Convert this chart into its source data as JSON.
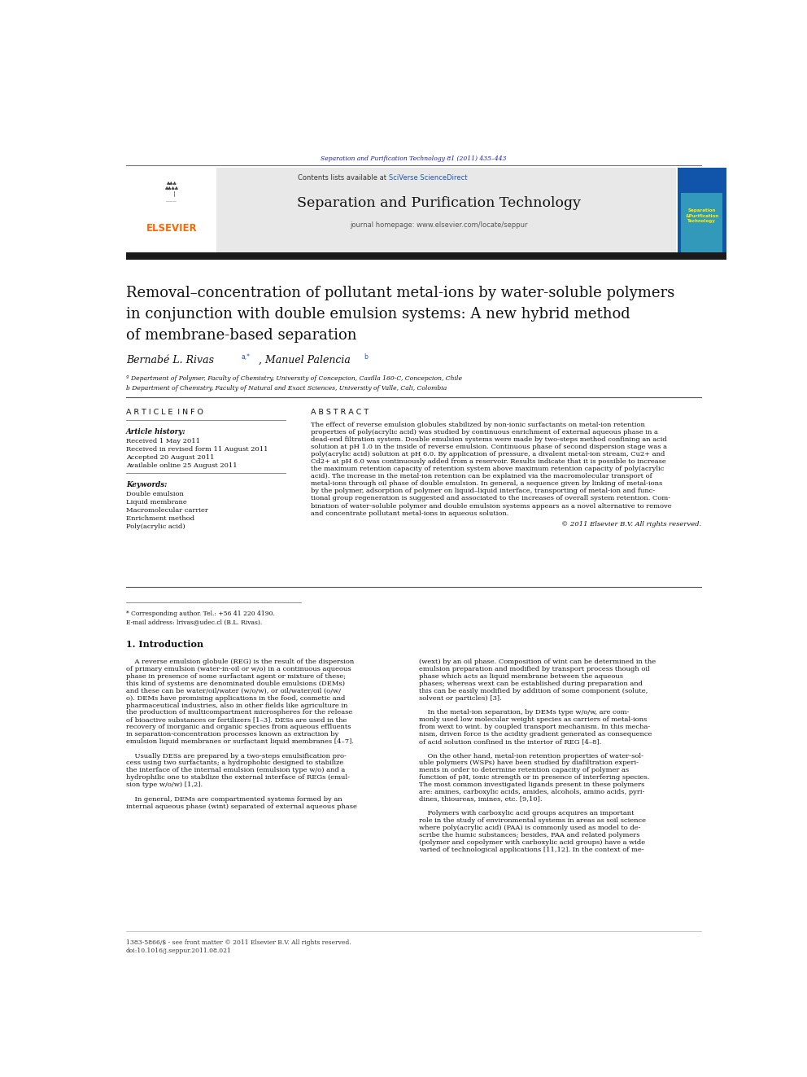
{
  "page_width": 9.92,
  "page_height": 13.23,
  "bg_color": "#ffffff",
  "journal_ref": "Separation and Purification Technology 81 (2011) 435–443",
  "journal_ref_color": "#1a1aaa",
  "contents_text": "Contents lists available at ",
  "sciverse_text": "SciVerse ScienceDirect",
  "sciverse_color": "#2255aa",
  "journal_name": "Separation and Purification Technology",
  "journal_homepage": "journal homepage: www.elsevier.com/locate/seppur",
  "header_bg": "#e8e8e8",
  "dark_bar_color": "#1a1a1a",
  "elsevier_color": "#ff6600",
  "article_title": "Removal–concentration of pollutant metal-ions by water-soluble polymers\nin conjunction with double emulsion systems: A new hybrid method\nof membrane-based separation",
  "authors": "Bernabé L. Rivas",
  "authors_super": "a,*",
  "authors2": ", Manuel Palencia",
  "authors2_super": "b",
  "affil1": "ª Department of Polymer, Faculty of Chemistry, University of Concepcion, Casilla 160-C, Concepcion, Chile",
  "affil2": "b Department of Chemistry, Faculty of Natural and Exact Sciences, University of Valle, Cali, Colombia",
  "article_info_header": "A R T I C L E  I N F O",
  "abstract_header": "A B S T R A C T",
  "article_history_label": "Article history:",
  "received1": "Received 1 May 2011",
  "received2": "Received in revised form 11 August 2011",
  "accepted": "Accepted 20 August 2011",
  "available": "Available online 25 August 2011",
  "keywords_label": "Keywords:",
  "keywords": [
    "Double emulsion",
    "Liquid membrane",
    "Macromolecular carrier",
    "Enrichment method",
    "Poly(acrylic acid)"
  ],
  "abstract_text": "The effect of reverse emulsion globules stabilized by non-ionic surfactants on metal-ion retention properties of poly(acrylic acid) was studied by continuous enrichment of external aqueous phase in a dead-end filtration system. Double emulsion systems were made by two-steps method confining an acid solution at pH 1.0 in the inside of reverse emulsion. Continuous phase of second dispersion stage was a poly(acrylic acid) solution at pH 6.0. By application of pressure, a divalent metal-ion stream, Cu2+ and Cd2+ at pH 6.0 was continuously added from a reservoir. Results indicate that it is possible to increase the maximum retention capacity of retention system above maximum retention capacity of poly(acrylic acid). The increase in the metal-ion retention can be explained via the macromolecular transport of metal-ions through oil phase of double emulsion. In general, a sequence given by linking of metal-ions by the polymer, adsorption of polymer on liquid–liquid interface, transporting of metal-ion and functional group regeneration is suggested and associated to the increases of overall system retention. Combination of water-soluble polymer and double emulsion systems appears as a novel alternative to remove and concentrate pollutant metal-ions in aqueous solution.",
  "copyright": "© 2011 Elsevier B.V. All rights reserved.",
  "section1_title": "1. Introduction",
  "footnote1": "* Corresponding author. Tel.: +56 41 220 4190.",
  "footnote2": "E-mail address: lrivas@udec.cl (B.L. Rivas).",
  "footer1": "1383-5866/$ - see front matter © 2011 Elsevier B.V. All rights reserved.",
  "footer2": "doi:10.1016/j.seppur.2011.08.021",
  "intro1_lines": [
    "    A reverse emulsion globule (REG) is the result of the dispersion",
    "of primary emulsion (water-in-oil or w/o) in a continuous aqueous",
    "phase in presence of some surfactant agent or mixture of these;",
    "this kind of systems are denominated double emulsions (DEMs)",
    "and these can be water/oil/water (w/o/w), or oil/water/oil (o/w/",
    "o). DEMs have promising applications in the food, cosmetic and",
    "pharmaceutical industries, also in other fields like agriculture in",
    "the production of multicompartment microspheres for the release",
    "of bioactive substances or fertilizers [1–3]. DESs are used in the",
    "recovery of inorganic and organic species from aqueous effluents",
    "in separation-concentration processes known as extraction by",
    "emulsion liquid membranes or surfactant liquid membranes [4–7].",
    "",
    "    Usually DESs are prepared by a two-steps emulsification pro-",
    "cess using two surfactants; a hydrophobic designed to stabilize",
    "the interface of the internal emulsion (emulsion type w/o) and a",
    "hydrophilic one to stabilize the external interface of REGs (emul-",
    "sion type w/o/w) [1,2].",
    "",
    "    In general, DEMs are compartmented systems formed by an",
    "internal aqueous phase (wint) separated of external aqueous phase"
  ],
  "intro2_lines": [
    "(wext) by an oil phase. Composition of wint can be determined in the",
    "emulsion preparation and modified by transport process though oil",
    "phase which acts as liquid membrane between the aqueous",
    "phases; whereas wext can be established during preparation and",
    "this can be easily modified by addition of some component (solute,",
    "solvent or particles) [3].",
    "",
    "    In the metal-ion separation, by DEMs type w/o/w, are com-",
    "monly used low molecular weight species as carriers of metal-ions",
    "from wext to wint. by coupled transport mechanism. In this mecha-",
    "nism, driven force is the acidity gradient generated as consequence",
    "of acid solution confined in the interior of REG [4–8].",
    "",
    "    On the other hand, metal-ion retention properties of water-sol-",
    "uble polymers (WSPs) have been studied by diafiltration experi-",
    "ments in order to determine retention capacity of polymer as",
    "function of pH, ionic strength or in presence of interfering species.",
    "The most common investigated ligands present in these polymers",
    "are: amines, carboxylic acids, amides, alcohols, amino acids, pyri-",
    "dines, thioureas, imines, etc. [9,10].",
    "",
    "    Polymers with carboxylic acid groups acquires an important",
    "role in the study of environmental systems in areas as soil science",
    "where poly(acrylic acid) (PAA) is commonly used as model to de-",
    "scribe the humic substances; besides, PAA and related polymers",
    "(polymer and copolymer with carboxylic acid groups) have a wide",
    "varied of technological applications [11,12]. In the context of me-"
  ]
}
